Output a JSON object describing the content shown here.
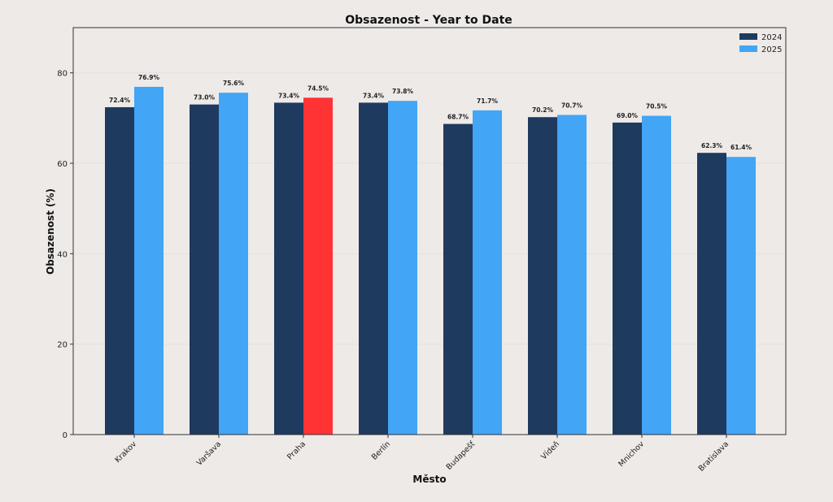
{
  "colors": {
    "background": "#eeeae8",
    "bar_2024": "#1e3a5f",
    "bar_2025": "#42a5f5",
    "highlight": "#ff3333",
    "axis": "#333333",
    "grid": "#e4e0de"
  },
  "chart_data": {
    "type": "bar",
    "title": "Obsazenost - Year to Date",
    "xlabel": "Město",
    "ylabel": "Obsazenost (%)",
    "ylim": [
      0,
      90
    ],
    "yticks": [
      0,
      20,
      40,
      60,
      80
    ],
    "grid": "horizontal",
    "legend_position": "top-right",
    "categories": [
      "Krakov",
      "Varšava",
      "Praha",
      "Berlín",
      "Budapešť",
      "Vídeň",
      "Mnichov",
      "Bratislava"
    ],
    "series": [
      {
        "name": "2024",
        "color": "#1e3a5f",
        "values": [
          72.4,
          73.0,
          73.4,
          73.4,
          68.7,
          70.2,
          69.0,
          62.3
        ],
        "labels": [
          "72.4%",
          "73.0%",
          "73.4%",
          "73.4%",
          "68.7%",
          "70.2%",
          "69.0%",
          "62.3%"
        ]
      },
      {
        "name": "2025",
        "color": "#42a5f5",
        "values": [
          76.9,
          75.6,
          74.5,
          73.8,
          71.7,
          70.7,
          70.5,
          61.4
        ],
        "labels": [
          "76.9%",
          "75.6%",
          "74.5%",
          "73.8%",
          "71.7%",
          "70.7%",
          "70.5%",
          "61.4%"
        ]
      }
    ],
    "highlight": {
      "category": "Praha",
      "series": "2025",
      "color": "#ff3333"
    }
  }
}
